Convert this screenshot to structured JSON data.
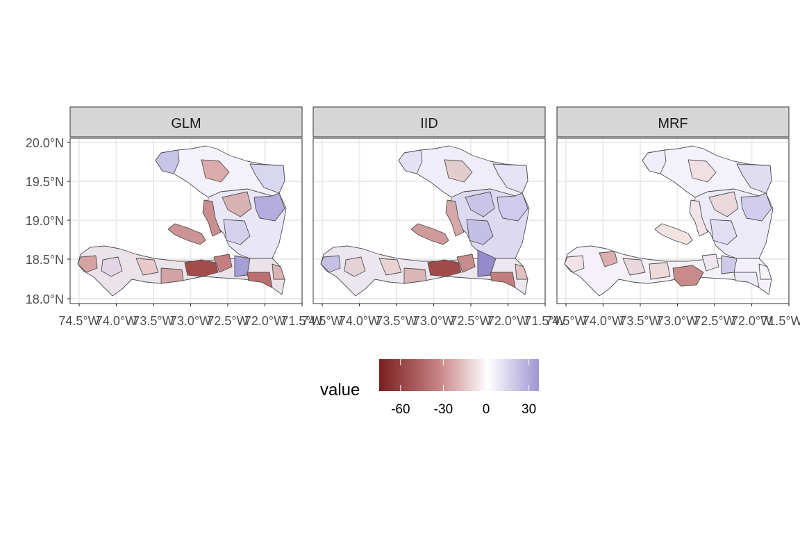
{
  "figure": {
    "panels": [
      {
        "label": "GLM",
        "tone": "glm"
      },
      {
        "label": "IID",
        "tone": "iid"
      },
      {
        "label": "MRF",
        "tone": "mrf"
      }
    ],
    "y_ticks": [
      "20.0°N",
      "19.5°N",
      "19.0°N",
      "18.5°N",
      "18.0°N"
    ],
    "x_ticks": [
      "74.5°W",
      "74.0°W",
      "73.5°W",
      "73.0°W",
      "72.5°W",
      "72.0°W",
      "71.5°W"
    ],
    "legend": {
      "title": "value",
      "ticks": [
        "-60",
        "-30",
        "0",
        "30"
      ],
      "tick_values": [
        -60,
        -30,
        0,
        30
      ],
      "range": [
        -75,
        37
      ],
      "colors": {
        "low": "#7a1e1e",
        "mid": "#ffffff",
        "high": "#9e96d2"
      }
    },
    "colors": {
      "strip_bg": "#d6d6d6",
      "strip_border": "#333333",
      "grid": "#ebebeb",
      "panel_border": "#333333",
      "outline": "#4d4d4d"
    }
  }
}
